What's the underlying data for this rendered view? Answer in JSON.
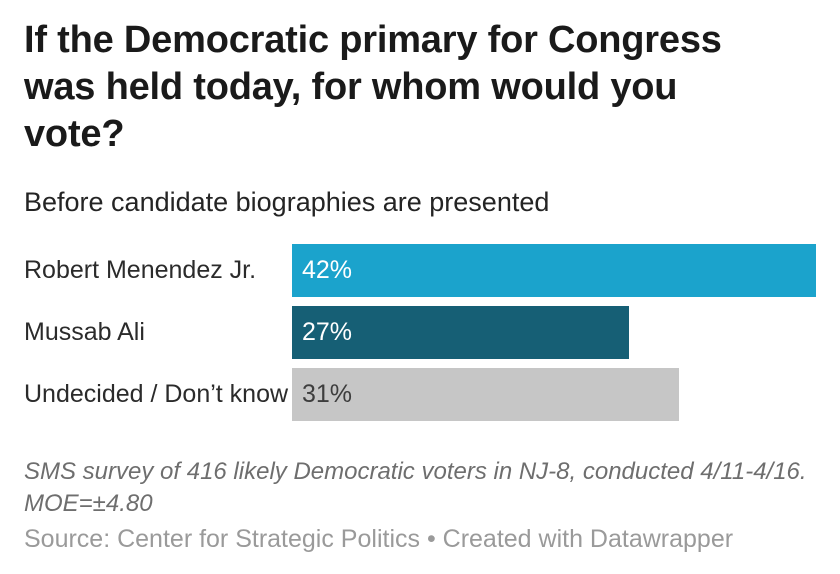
{
  "header": {
    "title": "If the Democratic primary for Congress was held today, for whom would you vote?",
    "subtitle": "Before candidate biographies are presented"
  },
  "chart_data": {
    "type": "bar",
    "orientation": "horizontal",
    "title": "If the Democratic primary for Congress was held today, for whom would you vote?",
    "subtitle": "Before candidate biographies are presented",
    "categories": [
      "Robert Menendez Jr.",
      "Mussab Ali",
      "Undecided / Don’t know"
    ],
    "values": [
      42,
      27,
      31
    ],
    "value_labels": [
      "42%",
      "27%",
      "31%"
    ],
    "unit": "percent",
    "xlim": [
      0,
      42
    ],
    "grid": false,
    "legend": false,
    "bar_colors": [
      "#1ba3cc",
      "#165f75",
      "#c6c6c6"
    ],
    "value_label_colors": [
      "#ffffff",
      "#ffffff",
      "#3d3d3d"
    ]
  },
  "footer": {
    "notes": "SMS survey of 416 likely Democratic voters in NJ-8, conducted 4/11-4/16. MOE=±4.80",
    "source": "Source: Center for Strategic Politics • Created with Datawrapper"
  },
  "colors": {
    "background": "#ffffff",
    "title_text": "#1a1a1a",
    "subtitle_text": "#242424",
    "category_label_text": "#2b2b2b",
    "notes_text": "#6e6e6e",
    "source_text": "#9a9a9a"
  }
}
